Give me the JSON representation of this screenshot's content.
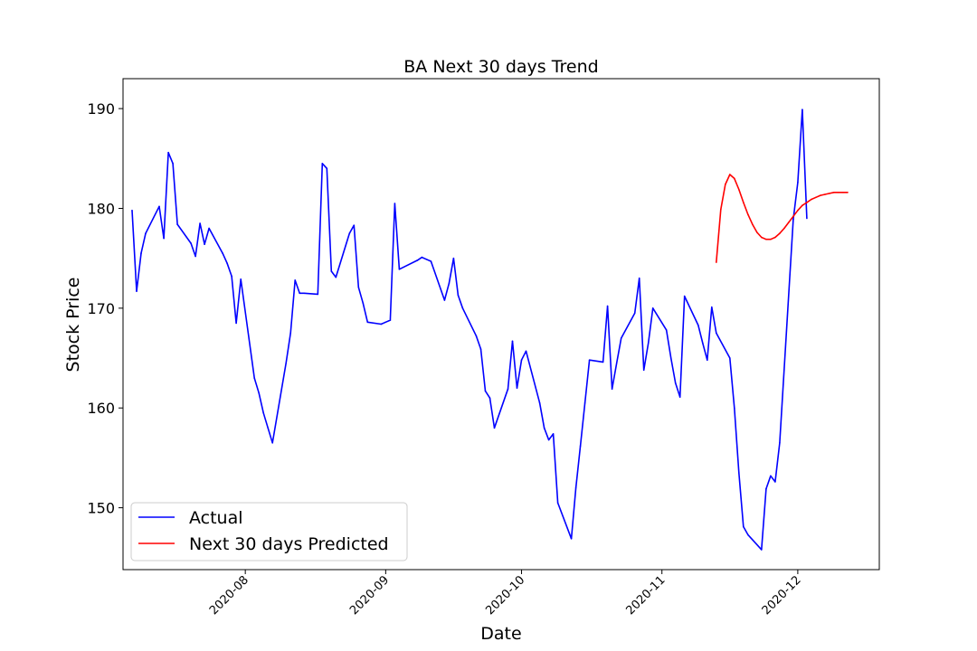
{
  "chart_data": {
    "type": "line",
    "title": "BA Next 30 days Trend",
    "xlabel": "Date",
    "ylabel": "Stock Price",
    "xlim": [
      "2020-07-05",
      "2020-12-19"
    ],
    "ylim": [
      143.8,
      193
    ],
    "x_ticks": [
      "2020-08",
      "2020-09",
      "2020-10",
      "2020-11",
      "2020-12"
    ],
    "y_ticks": [
      150,
      160,
      170,
      180,
      190
    ],
    "grid": false,
    "legend_position": "lower-left",
    "series": [
      {
        "name": "Actual",
        "color": "#0000ff",
        "points": [
          [
            "2020-07-07",
            179.8
          ],
          [
            "2020-07-08",
            171.7
          ],
          [
            "2020-07-09",
            175.5
          ],
          [
            "2020-07-10",
            177.5
          ],
          [
            "2020-07-13",
            180.2
          ],
          [
            "2020-07-14",
            177.0
          ],
          [
            "2020-07-15",
            185.6
          ],
          [
            "2020-07-16",
            184.5
          ],
          [
            "2020-07-17",
            178.4
          ],
          [
            "2020-07-20",
            176.5
          ],
          [
            "2020-07-21",
            175.2
          ],
          [
            "2020-07-22",
            178.5
          ],
          [
            "2020-07-23",
            176.4
          ],
          [
            "2020-07-24",
            178.0
          ],
          [
            "2020-07-27",
            175.5
          ],
          [
            "2020-07-28",
            174.5
          ],
          [
            "2020-07-29",
            173.2
          ],
          [
            "2020-07-30",
            168.5
          ],
          [
            "2020-07-31",
            172.9
          ],
          [
            "2020-08-03",
            163.0
          ],
          [
            "2020-08-04",
            161.5
          ],
          [
            "2020-08-05",
            159.5
          ],
          [
            "2020-08-06",
            158.0
          ],
          [
            "2020-08-07",
            156.5
          ],
          [
            "2020-08-10",
            164.5
          ],
          [
            "2020-08-11",
            167.5
          ],
          [
            "2020-08-12",
            172.8
          ],
          [
            "2020-08-13",
            171.5
          ],
          [
            "2020-08-14",
            171.5
          ],
          [
            "2020-08-17",
            171.4
          ],
          [
            "2020-08-18",
            184.5
          ],
          [
            "2020-08-19",
            184.0
          ],
          [
            "2020-08-20",
            173.7
          ],
          [
            "2020-08-21",
            173.1
          ],
          [
            "2020-08-24",
            177.5
          ],
          [
            "2020-08-25",
            178.3
          ],
          [
            "2020-08-26",
            172.1
          ],
          [
            "2020-08-27",
            170.5
          ],
          [
            "2020-08-28",
            168.6
          ],
          [
            "2020-08-31",
            168.4
          ],
          [
            "2020-09-01",
            168.6
          ],
          [
            "2020-09-02",
            168.8
          ],
          [
            "2020-09-03",
            180.5
          ],
          [
            "2020-09-04",
            173.9
          ],
          [
            "2020-09-08",
            174.8
          ],
          [
            "2020-09-09",
            175.1
          ],
          [
            "2020-09-10",
            174.9
          ],
          [
            "2020-09-11",
            174.7
          ],
          [
            "2020-09-14",
            170.8
          ],
          [
            "2020-09-15",
            172.5
          ],
          [
            "2020-09-16",
            175.0
          ],
          [
            "2020-09-17",
            171.3
          ],
          [
            "2020-09-18",
            170.0
          ],
          [
            "2020-09-21",
            167.2
          ],
          [
            "2020-09-22",
            165.9
          ],
          [
            "2020-09-23",
            161.7
          ],
          [
            "2020-09-24",
            161.0
          ],
          [
            "2020-09-25",
            158.0
          ],
          [
            "2020-09-28",
            161.9
          ],
          [
            "2020-09-29",
            166.7
          ],
          [
            "2020-09-30",
            162.0
          ],
          [
            "2020-10-01",
            164.8
          ],
          [
            "2020-10-02",
            165.7
          ],
          [
            "2020-10-05",
            160.5
          ],
          [
            "2020-10-06",
            158.0
          ],
          [
            "2020-10-07",
            156.8
          ],
          [
            "2020-10-08",
            157.4
          ],
          [
            "2020-10-09",
            150.5
          ],
          [
            "2020-10-12",
            146.9
          ],
          [
            "2020-10-13",
            152.0
          ],
          [
            "2020-10-14",
            156.2
          ],
          [
            "2020-10-15",
            160.5
          ],
          [
            "2020-10-16",
            164.8
          ],
          [
            "2020-10-19",
            164.6
          ],
          [
            "2020-10-20",
            170.2
          ],
          [
            "2020-10-21",
            161.9
          ],
          [
            "2020-10-22",
            164.5
          ],
          [
            "2020-10-23",
            167.0
          ],
          [
            "2020-10-26",
            169.5
          ],
          [
            "2020-10-27",
            173.0
          ],
          [
            "2020-10-28",
            163.8
          ],
          [
            "2020-10-29",
            166.5
          ],
          [
            "2020-10-30",
            170.0
          ],
          [
            "2020-11-02",
            167.8
          ],
          [
            "2020-11-03",
            165.0
          ],
          [
            "2020-11-04",
            162.5
          ],
          [
            "2020-11-05",
            161.1
          ],
          [
            "2020-11-06",
            171.2
          ],
          [
            "2020-11-09",
            168.3
          ],
          [
            "2020-11-10",
            166.5
          ],
          [
            "2020-11-11",
            164.8
          ],
          [
            "2020-11-12",
            170.1
          ],
          [
            "2020-11-13",
            167.5
          ],
          [
            "2020-11-16",
            165.0
          ],
          [
            "2020-11-17",
            160.0
          ],
          [
            "2020-11-18",
            153.5
          ],
          [
            "2020-11-19",
            148.1
          ],
          [
            "2020-11-20",
            147.3
          ],
          [
            "2020-11-23",
            145.8
          ],
          [
            "2020-11-24",
            151.9
          ],
          [
            "2020-11-25",
            153.2
          ],
          [
            "2020-11-26",
            152.6
          ],
          [
            "2020-11-27",
            156.5
          ],
          [
            "2020-11-30",
            178.9
          ],
          [
            "2020-12-01",
            182.6
          ],
          [
            "2020-12-02",
            189.9
          ],
          [
            "2020-12-03",
            179.0
          ]
        ]
      },
      {
        "name": "Next 30 days Predicted",
        "color": "#ff0000",
        "points": [
          [
            "2020-11-13",
            174.6
          ],
          [
            "2020-11-14",
            179.9
          ],
          [
            "2020-11-15",
            182.4
          ],
          [
            "2020-11-16",
            183.4
          ],
          [
            "2020-11-17",
            183.0
          ],
          [
            "2020-11-18",
            181.9
          ],
          [
            "2020-11-19",
            180.6
          ],
          [
            "2020-11-20",
            179.4
          ],
          [
            "2020-11-21",
            178.4
          ],
          [
            "2020-11-22",
            177.6
          ],
          [
            "2020-11-23",
            177.1
          ],
          [
            "2020-11-24",
            176.9
          ],
          [
            "2020-11-25",
            176.9
          ],
          [
            "2020-11-26",
            177.1
          ],
          [
            "2020-11-27",
            177.5
          ],
          [
            "2020-11-28",
            178.0
          ],
          [
            "2020-11-29",
            178.6
          ],
          [
            "2020-11-30",
            179.2
          ],
          [
            "2020-12-01",
            179.8
          ],
          [
            "2020-12-02",
            180.3
          ],
          [
            "2020-12-03",
            180.6
          ],
          [
            "2020-12-04",
            180.9
          ],
          [
            "2020-12-05",
            181.1
          ],
          [
            "2020-12-06",
            181.3
          ],
          [
            "2020-12-07",
            181.4
          ],
          [
            "2020-12-08",
            181.5
          ],
          [
            "2020-12-09",
            181.6
          ],
          [
            "2020-12-10",
            181.6
          ],
          [
            "2020-12-11",
            181.6
          ],
          [
            "2020-12-12",
            181.6
          ]
        ]
      }
    ]
  }
}
